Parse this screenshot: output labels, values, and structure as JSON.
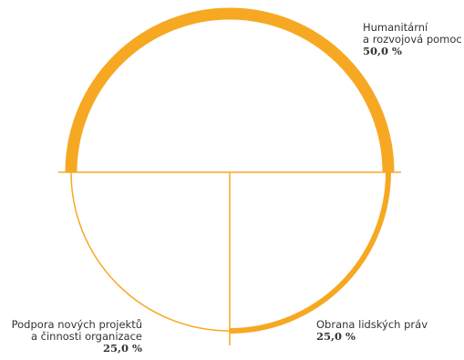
{
  "colors": {
    "accent": "#F7A823"
  },
  "chart_data": {
    "type": "pie",
    "style": "half-donut split",
    "slices": [
      {
        "label": "Humanitární\na rozvojová pomoc",
        "value": 50.0,
        "display": "50,0 %",
        "emphasis": "thick"
      },
      {
        "label": "Obrana lidských práv",
        "value": 25.0,
        "display": "25,0 %",
        "emphasis": "medium"
      },
      {
        "label": "Podpora nových projektů\na činnosti organizace",
        "value": 25.0,
        "display": "25,0 %",
        "emphasis": "thin"
      }
    ]
  }
}
